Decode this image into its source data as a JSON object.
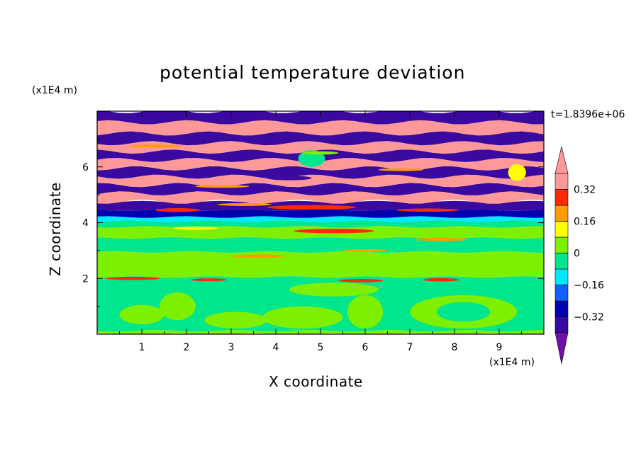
{
  "chart_data": {
    "type": "heatmap",
    "title": "potential temperature deviation",
    "xlabel": "X coordinate",
    "ylabel": "Z coordinate",
    "x_unit": "(x1E4 m)",
    "y_unit": "(x1E4 m)",
    "time_label": "t=1.8396e+06",
    "xlim": [
      0,
      10
    ],
    "ylim": [
      0,
      8
    ],
    "x_ticks": [
      1,
      2,
      3,
      4,
      5,
      6,
      7,
      8,
      9
    ],
    "y_ticks": [
      2,
      4,
      6
    ],
    "colorbar": {
      "levels": [
        -0.4,
        -0.32,
        -0.24,
        -0.16,
        -0.08,
        0,
        0.08,
        0.16,
        0.24,
        0.32,
        0.4
      ],
      "tick_labels": [
        "0.32",
        "0.16",
        "0",
        "−0.16",
        "−0.32"
      ],
      "tick_values": [
        0.32,
        0.16,
        0,
        -0.16,
        -0.32
      ],
      "colors": [
        "#7010a8",
        "#3a0aa0",
        "#0000b0",
        "#1060ff",
        "#00e8ff",
        "#00e68c",
        "#7cf000",
        "#ffff00",
        "#ff9c00",
        "#ff2a00",
        "#ff9898"
      ],
      "extend": "both"
    },
    "bands": [
      {
        "z": [
          0.0,
          0.12
        ],
        "value": 0.02
      },
      {
        "z": [
          0.12,
          2.05
        ],
        "value": -0.02
      },
      {
        "z": [
          2.05,
          2.95
        ],
        "value": 0.02
      },
      {
        "z": [
          2.95,
          3.45
        ],
        "value": -0.02
      },
      {
        "z": [
          3.45,
          3.85
        ],
        "value": 0.02
      },
      {
        "z": [
          3.85,
          4.05
        ],
        "value": -0.02
      },
      {
        "z": [
          4.05,
          4.2
        ],
        "value": -0.13
      },
      {
        "z": [
          4.2,
          4.45
        ],
        "value": -0.3
      },
      {
        "z": [
          4.45,
          4.75
        ],
        "value": -0.4
      },
      {
        "z": [
          4.75,
          5.05
        ],
        "value": 0.4
      },
      {
        "z": [
          5.05,
          5.35
        ],
        "value": -0.4
      },
      {
        "z": [
          5.35,
          5.65
        ],
        "value": 0.4
      },
      {
        "z": [
          5.65,
          5.95
        ],
        "value": -0.4
      },
      {
        "z": [
          5.95,
          6.25
        ],
        "value": 0.4
      },
      {
        "z": [
          6.25,
          6.55
        ],
        "value": -0.4
      },
      {
        "z": [
          6.55,
          6.85
        ],
        "value": 0.4
      },
      {
        "z": [
          6.85,
          7.2
        ],
        "value": -0.4
      },
      {
        "z": [
          7.2,
          7.6
        ],
        "value": 0.4
      },
      {
        "z": [
          7.6,
          8.0
        ],
        "value": -0.4
      }
    ],
    "blobs": [
      {
        "x": 1.0,
        "z": 0.7,
        "rx": 0.5,
        "rz": 0.35,
        "value": 0.02
      },
      {
        "x": 1.8,
        "z": 1.0,
        "rx": 0.4,
        "rz": 0.5,
        "value": 0.02
      },
      {
        "x": 3.1,
        "z": 0.5,
        "rx": 0.7,
        "rz": 0.3,
        "value": 0.02
      },
      {
        "x": 4.6,
        "z": 0.6,
        "rx": 0.9,
        "rz": 0.4,
        "value": 0.02
      },
      {
        "x": 6.0,
        "z": 0.8,
        "rx": 0.4,
        "rz": 0.6,
        "value": 0.02
      },
      {
        "x": 8.2,
        "z": 0.8,
        "rx": 1.2,
        "rz": 0.6,
        "value": 0.02
      },
      {
        "x": 8.2,
        "z": 0.8,
        "rx": 0.6,
        "rz": 0.35,
        "value": -0.02
      },
      {
        "x": 5.3,
        "z": 1.6,
        "rx": 1.0,
        "rz": 0.25,
        "value": 0.02
      },
      {
        "x": 0.8,
        "z": 2.0,
        "rx": 0.6,
        "rz": 0.06,
        "value": 0.3
      },
      {
        "x": 2.5,
        "z": 1.95,
        "rx": 0.4,
        "rz": 0.05,
        "value": 0.26
      },
      {
        "x": 5.9,
        "z": 1.92,
        "rx": 0.5,
        "rz": 0.06,
        "value": 0.3
      },
      {
        "x": 7.7,
        "z": 1.95,
        "rx": 0.4,
        "rz": 0.06,
        "value": 0.26
      },
      {
        "x": 3.6,
        "z": 2.8,
        "rx": 0.6,
        "rz": 0.06,
        "value": 0.2
      },
      {
        "x": 6.0,
        "z": 3.0,
        "rx": 0.5,
        "rz": 0.05,
        "value": 0.2
      },
      {
        "x": 7.7,
        "z": 3.4,
        "rx": 0.6,
        "rz": 0.06,
        "value": 0.2
      },
      {
        "x": 5.3,
        "z": 3.7,
        "rx": 0.9,
        "rz": 0.08,
        "value": 0.28
      },
      {
        "x": 2.2,
        "z": 3.8,
        "rx": 0.5,
        "rz": 0.06,
        "value": 0.12
      },
      {
        "x": 1.8,
        "z": 4.45,
        "rx": 0.5,
        "rz": 0.07,
        "value": 0.3
      },
      {
        "x": 4.8,
        "z": 4.55,
        "rx": 1.0,
        "rz": 0.08,
        "value": 0.3
      },
      {
        "x": 3.3,
        "z": 4.65,
        "rx": 0.6,
        "rz": 0.05,
        "value": 0.2
      },
      {
        "x": 7.4,
        "z": 4.45,
        "rx": 0.7,
        "rz": 0.06,
        "value": 0.24
      },
      {
        "x": 4.3,
        "z": 5.6,
        "rx": 0.5,
        "rz": 0.08,
        "value": -0.4
      },
      {
        "x": 4.8,
        "z": 6.3,
        "rx": 0.3,
        "rz": 0.3,
        "value": -0.05
      },
      {
        "x": 2.8,
        "z": 5.3,
        "rx": 0.6,
        "rz": 0.05,
        "value": 0.2
      },
      {
        "x": 6.8,
        "z": 5.9,
        "rx": 0.5,
        "rz": 0.05,
        "value": 0.2
      },
      {
        "x": 9.4,
        "z": 5.8,
        "rx": 0.2,
        "rz": 0.3,
        "value": 0.1
      },
      {
        "x": 1.3,
        "z": 6.75,
        "rx": 0.6,
        "rz": 0.05,
        "value": 0.2
      },
      {
        "x": 5.0,
        "z": 6.5,
        "rx": 0.4,
        "rz": 0.06,
        "value": 0.06
      }
    ]
  }
}
